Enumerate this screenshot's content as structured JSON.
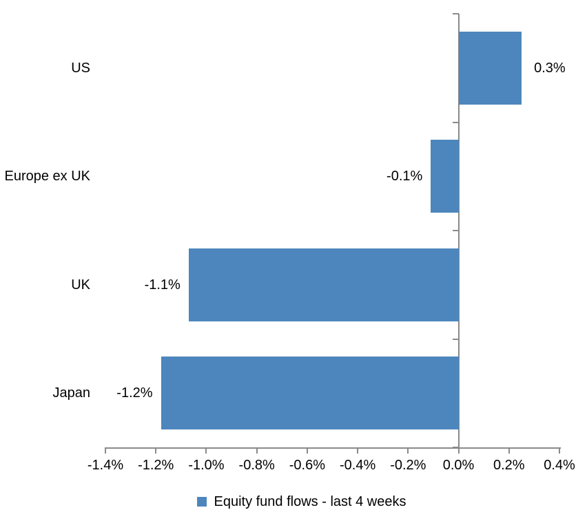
{
  "chart_data": {
    "type": "bar",
    "orientation": "horizontal",
    "title": "",
    "xlabel": "",
    "ylabel": "",
    "categories": [
      "US",
      "Europe ex UK",
      "UK",
      "Japan"
    ],
    "series": [
      {
        "name": "Equity fund flows - last 4 weeks",
        "values": [
          0.3,
          -0.1,
          -1.1,
          -1.2
        ],
        "values_precise": [
          0.25,
          -0.11,
          -1.07,
          -1.18
        ],
        "data_labels": [
          "0.3%",
          "-0.1%",
          "-1.1%",
          "-1.2%"
        ]
      }
    ],
    "xlim": [
      -1.4,
      0.4
    ],
    "x_tick_step": 0.2,
    "x_tick_labels": [
      "-1.4%",
      "-1.2%",
      "-1.0%",
      "-0.8%",
      "-0.6%",
      "-0.4%",
      "-0.2%",
      "0.0%",
      "0.2%",
      "0.4%"
    ],
    "grid": false,
    "legend": {
      "position": "bottom",
      "marker": "square",
      "label": "Equity fund flows - last 4 weeks"
    },
    "colors": {
      "bar": "#4D86BC",
      "axis": "#8A8A8A",
      "text": "#000000",
      "background": "#FFFFFF"
    }
  }
}
